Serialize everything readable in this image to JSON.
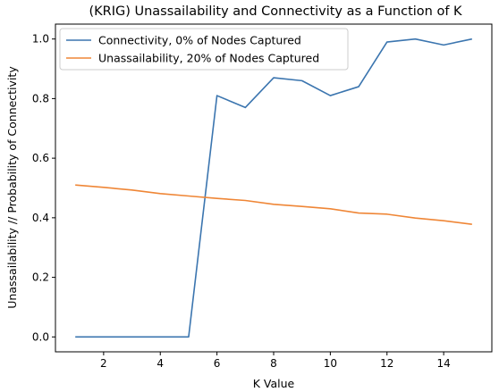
{
  "chart_data": {
    "type": "line",
    "title": "(KRIG) Unassailability and Connectivity as a Function of K",
    "xlabel": "K Value",
    "ylabel": "Unassailability // Probability of Connectivity",
    "xlim": [
      0.3,
      15.7
    ],
    "ylim": [
      -0.05,
      1.05
    ],
    "x_ticks": [
      2,
      4,
      6,
      8,
      10,
      12,
      14
    ],
    "y_ticks": [
      0.0,
      0.2,
      0.4,
      0.6,
      0.8,
      1.0
    ],
    "x_tick_labels": [
      "2",
      "4",
      "6",
      "8",
      "10",
      "12",
      "14"
    ],
    "y_tick_labels": [
      "0.0",
      "0.2",
      "0.4",
      "0.6",
      "0.8",
      "1.0"
    ],
    "grid": false,
    "legend_position": "top-left",
    "x": [
      1,
      2,
      3,
      4,
      5,
      6,
      7,
      8,
      9,
      10,
      11,
      12,
      13,
      14,
      15
    ],
    "series": [
      {
        "name": "Connectivity, 0% of Nodes Captured",
        "color": "#3b75af",
        "values": [
          0.0,
          0.0,
          0.0,
          0.0,
          0.0,
          0.81,
          0.77,
          0.87,
          0.86,
          0.81,
          0.84,
          0.99,
          1.0,
          0.98,
          1.0
        ]
      },
      {
        "name": "Unassailability, 20% of Nodes Captured",
        "color": "#ef8636",
        "values": [
          0.51,
          0.502,
          0.493,
          0.481,
          0.473,
          0.465,
          0.458,
          0.445,
          0.438,
          0.43,
          0.416,
          0.412,
          0.399,
          0.39,
          0.378
        ]
      }
    ]
  }
}
